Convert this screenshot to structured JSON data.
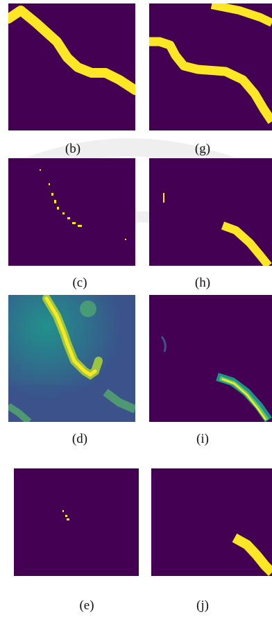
{
  "figure": {
    "panels": [
      {
        "id": "b",
        "caption": "(b)",
        "kind": "binary-mask"
      },
      {
        "id": "g",
        "caption": "(g)",
        "kind": "binary-mask"
      },
      {
        "id": "c",
        "caption": "(c)",
        "kind": "binary-mask"
      },
      {
        "id": "h",
        "caption": "(h)",
        "kind": "binary-mask"
      },
      {
        "id": "d",
        "caption": "(d)",
        "kind": "heatmap"
      },
      {
        "id": "i",
        "caption": "(i)",
        "kind": "heatmap"
      },
      {
        "id": "e",
        "caption": "(e)",
        "kind": "binary-mask"
      },
      {
        "id": "j",
        "caption": "(j)",
        "kind": "binary-mask"
      }
    ]
  },
  "colors": {
    "background": "#440154",
    "foreground": "#fde725",
    "mid": "#21918c",
    "low": "#3b528b",
    "high": "#5ec962"
  }
}
